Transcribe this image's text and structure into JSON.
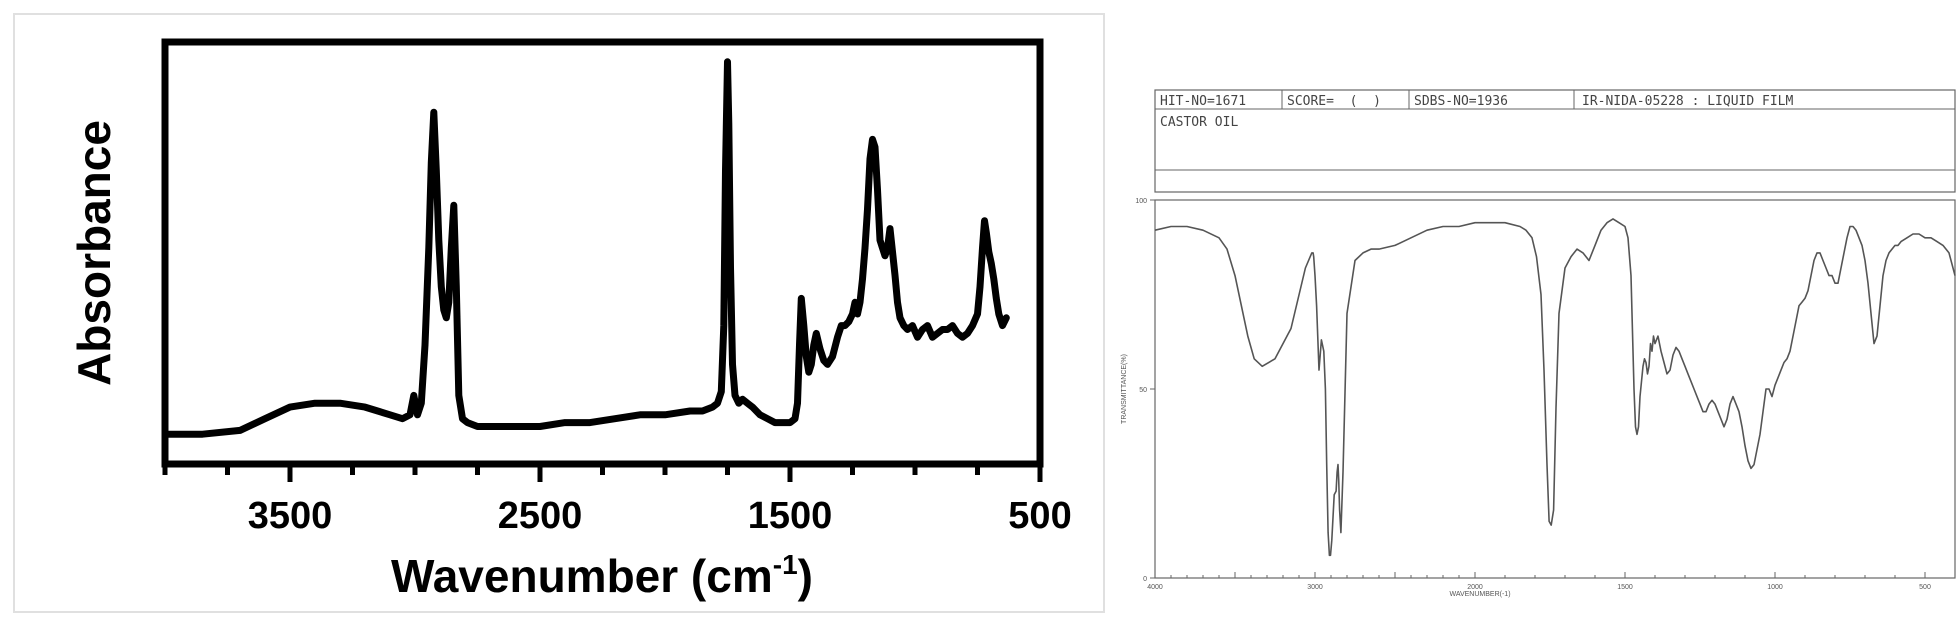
{
  "charts": [
    {
      "id": "left",
      "chart_data": {
        "type": "line",
        "title": "",
        "xlabel": "Wavenumber (cm",
        "xlabel_sup": "-1",
        "xlabel_suffix": ")",
        "ylabel": "Absorbance",
        "xlim": [
          4000,
          500
        ],
        "ylim": [
          0,
          1
        ],
        "x_ticks": [
          3500,
          2500,
          1500,
          500
        ],
        "x_tick_labels": [
          "3500",
          "2500",
          "1500",
          "500"
        ],
        "x_minor_tick_step": 250,
        "y_ticks": [],
        "grid": false,
        "legend": "none",
        "line_color": "#000000",
        "series": [
          {
            "x": [
              4000,
              3850,
              3700,
              3600,
              3500,
              3400,
              3300,
              3200,
              3100,
              3050,
              3020,
              3005,
              2990,
              2975,
              2960,
              2945,
              2935,
              2925,
              2915,
              2905,
              2895,
              2885,
              2875,
              2865,
              2855,
              2845,
              2835,
              2825,
              2810,
              2790,
              2750,
              2700,
              2600,
              2500,
              2400,
              2300,
              2200,
              2100,
              2000,
              1900,
              1850,
              1810,
              1790,
              1775,
              1765,
              1758,
              1750,
              1745,
              1738,
              1730,
              1720,
              1705,
              1690,
              1670,
              1650,
              1620,
              1590,
              1560,
              1530,
              1500,
              1480,
              1470,
              1462,
              1455,
              1445,
              1435,
              1425,
              1415,
              1405,
              1395,
              1380,
              1365,
              1350,
              1330,
              1310,
              1295,
              1280,
              1265,
              1250,
              1240,
              1230,
              1220,
              1210,
              1200,
              1190,
              1180,
              1170,
              1160,
              1150,
              1140,
              1130,
              1120,
              1110,
              1100,
              1090,
              1080,
              1070,
              1060,
              1045,
              1030,
              1010,
              990,
              970,
              950,
              930,
              910,
              890,
              870,
              850,
              830,
              810,
              790,
              770,
              750,
              740,
              730,
              722,
              715,
              705,
              695,
              685,
              675,
              665,
              650,
              635
            ],
            "y": [
              0.02,
              0.02,
              0.03,
              0.06,
              0.09,
              0.1,
              0.1,
              0.09,
              0.07,
              0.06,
              0.07,
              0.12,
              0.07,
              0.1,
              0.25,
              0.5,
              0.72,
              0.85,
              0.7,
              0.52,
              0.4,
              0.34,
              0.32,
              0.36,
              0.5,
              0.61,
              0.4,
              0.12,
              0.06,
              0.05,
              0.04,
              0.04,
              0.04,
              0.04,
              0.05,
              0.05,
              0.06,
              0.07,
              0.07,
              0.08,
              0.08,
              0.09,
              0.1,
              0.13,
              0.3,
              0.7,
              0.98,
              0.82,
              0.45,
              0.2,
              0.12,
              0.1,
              0.11,
              0.1,
              0.09,
              0.07,
              0.06,
              0.05,
              0.05,
              0.05,
              0.06,
              0.1,
              0.25,
              0.37,
              0.3,
              0.22,
              0.18,
              0.2,
              0.25,
              0.28,
              0.24,
              0.21,
              0.2,
              0.22,
              0.27,
              0.3,
              0.3,
              0.31,
              0.33,
              0.36,
              0.33,
              0.36,
              0.42,
              0.5,
              0.6,
              0.73,
              0.78,
              0.76,
              0.65,
              0.52,
              0.5,
              0.48,
              0.5,
              0.55,
              0.49,
              0.43,
              0.36,
              0.32,
              0.3,
              0.29,
              0.3,
              0.27,
              0.29,
              0.3,
              0.27,
              0.28,
              0.29,
              0.29,
              0.3,
              0.28,
              0.27,
              0.28,
              0.3,
              0.33,
              0.4,
              0.5,
              0.57,
              0.54,
              0.49,
              0.46,
              0.42,
              0.37,
              0.33,
              0.3,
              0.32
            ]
          }
        ]
      }
    },
    {
      "id": "right",
      "header": {
        "hit_no": "HIT-NO=1671",
        "score": "SCORE=  (  )",
        "sdbs_no": "SDBS-NO=1936",
        "ir_code": "IR-NIDA-05228 : LIQUID FILM",
        "compound": "CASTOR OIL"
      },
      "chart_data": {
        "type": "line",
        "title": "",
        "xlabel": "WAVENUMBER(-1)",
        "ylabel": "TRANSMITTANCE(%)",
        "xlim": [
          4000,
          400
        ],
        "ylim": [
          0,
          100
        ],
        "y_ticks": [
          0,
          50,
          100
        ],
        "y_tick_labels": [
          "0",
          "50",
          "100"
        ],
        "x_ticks": [
          4000,
          3000,
          2000,
          1500,
          1000,
          500
        ],
        "x_tick_labels": [
          "4000",
          "3000",
          "2000",
          "1500",
          "1000",
          "500"
        ],
        "grid": false,
        "legend": "none",
        "line_color": "#555555",
        "series": [
          {
            "x": [
              4000,
              3900,
              3800,
              3700,
              3600,
              3550,
              3500,
              3450,
              3420,
              3380,
              3330,
              3250,
              3150,
              3060,
              3020,
              3012,
              3008,
              3000,
              2990,
              2975,
              2960,
              2945,
              2935,
              2927,
              2918,
              2910,
              2903,
              2895,
              2880,
              2868,
              2862,
              2856,
              2852,
              2846,
              2838,
              2825,
              2800,
              2750,
              2700,
              2650,
              2600,
              2500,
              2400,
              2300,
              2200,
              2100,
              2000,
              1950,
              1900,
              1850,
              1830,
              1810,
              1795,
              1780,
              1770,
              1760,
              1753,
              1746,
              1738,
              1730,
              1720,
              1700,
              1680,
              1660,
              1640,
              1620,
              1600,
              1580,
              1560,
              1540,
              1520,
              1500,
              1490,
              1480,
              1475,
              1470,
              1465,
              1460,
              1455,
              1450,
              1445,
              1440,
              1435,
              1430,
              1425,
              1420,
              1415,
              1410,
              1405,
              1400,
              1390,
              1380,
              1370,
              1360,
              1350,
              1340,
              1330,
              1320,
              1310,
              1300,
              1290,
              1280,
              1270,
              1260,
              1250,
              1240,
              1230,
              1220,
              1210,
              1200,
              1190,
              1180,
              1170,
              1160,
              1150,
              1140,
              1130,
              1120,
              1110,
              1100,
              1090,
              1080,
              1070,
              1060,
              1050,
              1040,
              1030,
              1020,
              1010,
              1000,
              990,
              980,
              970,
              960,
              950,
              940,
              930,
              920,
              910,
              900,
              890,
              880,
              870,
              860,
              850,
              840,
              830,
              820,
              810,
              800,
              790,
              780,
              770,
              760,
              750,
              740,
              730,
              720,
              710,
              700,
              690,
              680,
              670,
              660,
              650,
              640,
              630,
              620,
              610,
              600,
              590,
              580,
              560,
              540,
              520,
              500,
              480,
              460,
              440,
              420,
              400
            ],
            "y": [
              92,
              93,
              93,
              92,
              90,
              87,
              80,
              70,
              64,
              58,
              56,
              58,
              66,
              82,
              86,
              86,
              85,
              80,
              72,
              55,
              63,
              60,
              50,
              30,
              12,
              6,
              6,
              10,
              22,
              23,
              28,
              30,
              26,
              18,
              12,
              28,
              70,
              84,
              86,
              87,
              87,
              88,
              90,
              92,
              93,
              93,
              94,
              94,
              94,
              93,
              92,
              90,
              85,
              75,
              55,
              30,
              15,
              14,
              18,
              45,
              70,
              82,
              85,
              87,
              86,
              84,
              88,
              92,
              94,
              95,
              94,
              93,
              90,
              80,
              65,
              50,
              40,
              38,
              40,
              48,
              52,
              56,
              58,
              57,
              54,
              56,
              62,
              60,
              64,
              62,
              64,
              60,
              57,
              54,
              55,
              59,
              61,
              60,
              58,
              56,
              54,
              52,
              50,
              48,
              46,
              44,
              44,
              46,
              47,
              46,
              44,
              42,
              40,
              42,
              46,
              48,
              46,
              44,
              40,
              35,
              31,
              29,
              30,
              34,
              38,
              44,
              50,
              50,
              48,
              51,
              53,
              55,
              57,
              58,
              60,
              64,
              68,
              72,
              73,
              74,
              76,
              80,
              84,
              86,
              86,
              84,
              82,
              80,
              80,
              78,
              78,
              82,
              86,
              90,
              93,
              93,
              92,
              90,
              88,
              84,
              78,
              70,
              62,
              64,
              72,
              80,
              84,
              86,
              87,
              88,
              88,
              89,
              90,
              91,
              91,
              90,
              90,
              89,
              88,
              86,
              80
            ]
          }
        ]
      }
    }
  ]
}
